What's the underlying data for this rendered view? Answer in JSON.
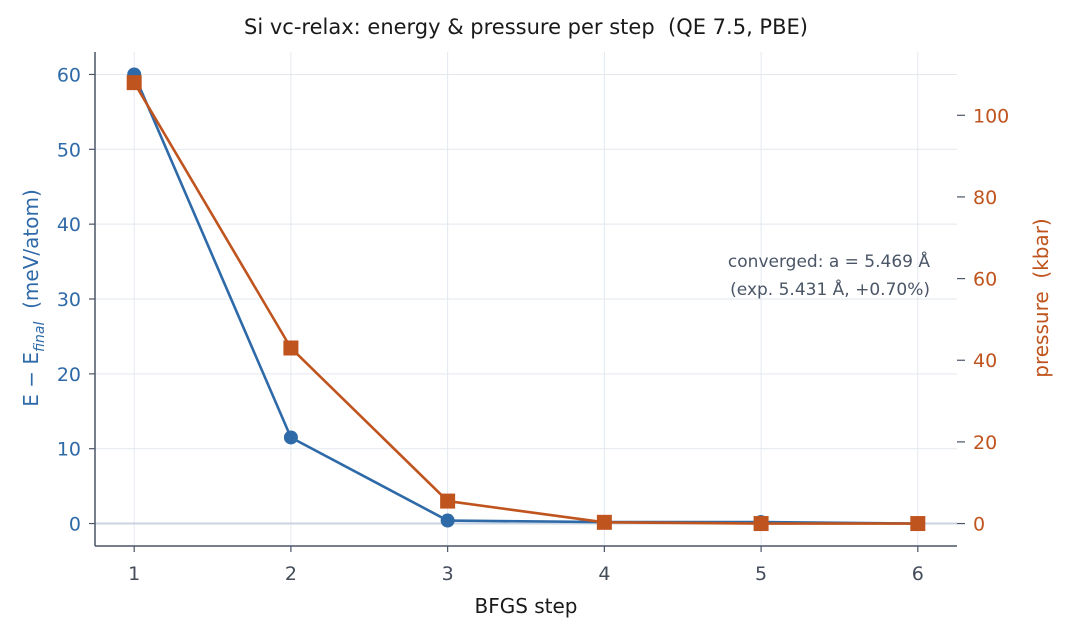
{
  "chart_data": {
    "type": "line",
    "title": "Si vc-relax: energy & pressure per step  (QE 7.5, PBE)",
    "xlabel": "BFGS step",
    "ylabel_left_main": "E − E",
    "ylabel_left_sub": "final",
    "ylabel_left_unit": "  (meV/atom)",
    "ylabel_right": "pressure  (kbar)",
    "x": [
      1,
      2,
      3,
      4,
      5,
      6
    ],
    "x_ticks": [
      "1",
      "2",
      "3",
      "4",
      "5",
      "6"
    ],
    "xlim": [
      0.75,
      6.25
    ],
    "y_left_ticks": [
      "0",
      "10",
      "20",
      "30",
      "40",
      "50",
      "60"
    ],
    "ylim_left": [
      -3,
      63
    ],
    "y_right_ticks": [
      "0",
      "20",
      "40",
      "60",
      "80",
      "100"
    ],
    "ylim_right": [
      -5.5,
      115.5
    ],
    "grid": true,
    "series": [
      {
        "axis": "left",
        "color": "#2f6aa8",
        "marker": "circle",
        "values": [
          60.0,
          11.5,
          0.4,
          0.2,
          0.2,
          0.0
        ]
      },
      {
        "axis": "right",
        "color": "#c0541e",
        "marker": "square",
        "values": [
          108.0,
          43.0,
          5.5,
          0.3,
          0.0,
          0.0
        ]
      }
    ],
    "annotation": {
      "line1": "converged: a = 5.469 Å",
      "line2": "(exp. 5.431 Å, +0.70%)"
    }
  }
}
